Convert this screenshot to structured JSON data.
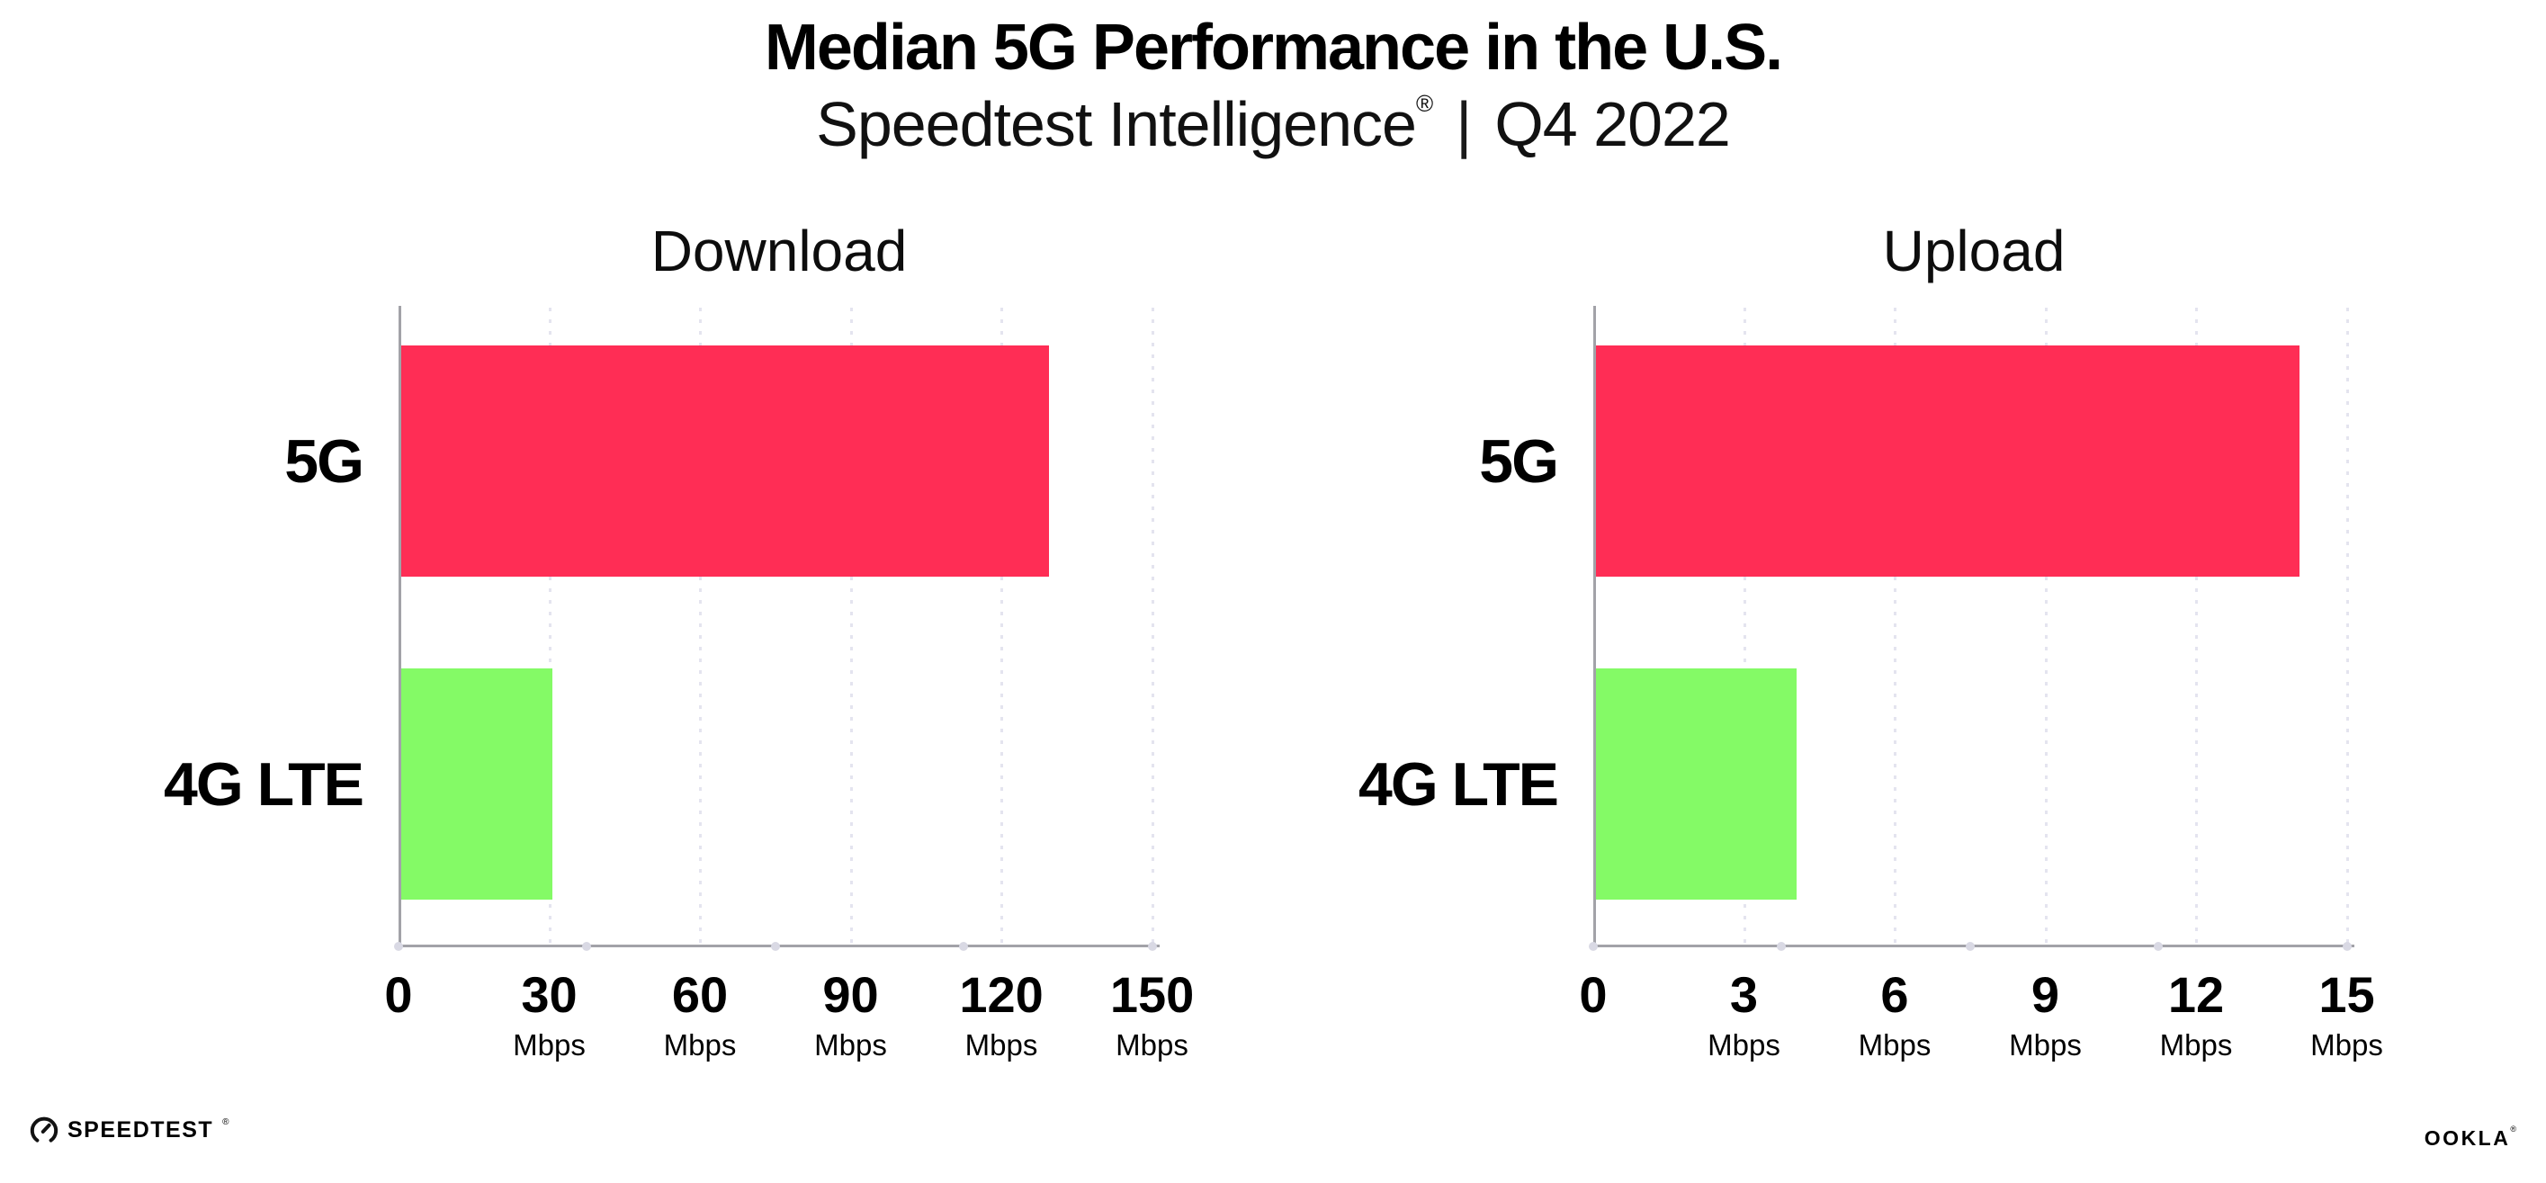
{
  "header": {
    "title": "Median 5G Performance in the U.S.",
    "subtitle_brand": "Speedtest Intelligence",
    "subtitle_reg": "®",
    "subtitle_sep": "|",
    "subtitle_period": "Q4 2022"
  },
  "chart_data": [
    {
      "type": "bar",
      "orientation": "horizontal",
      "title": "Download",
      "categories": [
        "5G",
        "4G LTE"
      ],
      "values": [
        129,
        30
      ],
      "unit": "Mbps",
      "xticks": [
        0,
        30,
        60,
        90,
        120,
        150
      ],
      "xlim": [
        0,
        150
      ],
      "grid": "vertical-dotted",
      "legend": "none",
      "bar_colors": [
        "#ff2d55",
        "#84fa66"
      ]
    },
    {
      "type": "bar",
      "orientation": "horizontal",
      "title": "Upload",
      "categories": [
        "5G",
        "4G LTE"
      ],
      "values": [
        14,
        4
      ],
      "unit": "Mbps",
      "xticks": [
        0,
        3,
        6,
        9,
        12,
        15
      ],
      "xlim": [
        0,
        15
      ],
      "grid": "vertical-dotted",
      "legend": "none",
      "bar_colors": [
        "#ff2d55",
        "#84fa66"
      ]
    }
  ],
  "footer": {
    "speedtest_label": "SPEEDTEST",
    "speedtest_reg": "®",
    "ookla_label": "OOKLA",
    "ookla_reg": "®"
  },
  "colors": {
    "bar_5g": "#ff2d55",
    "bar_4g_lte": "#84fa66",
    "gridline": "#e4e4ef",
    "axis_line": "#a2a2a8",
    "axis_dot": "#d9d9e4",
    "text": "#000000",
    "background": "#ffffff"
  }
}
